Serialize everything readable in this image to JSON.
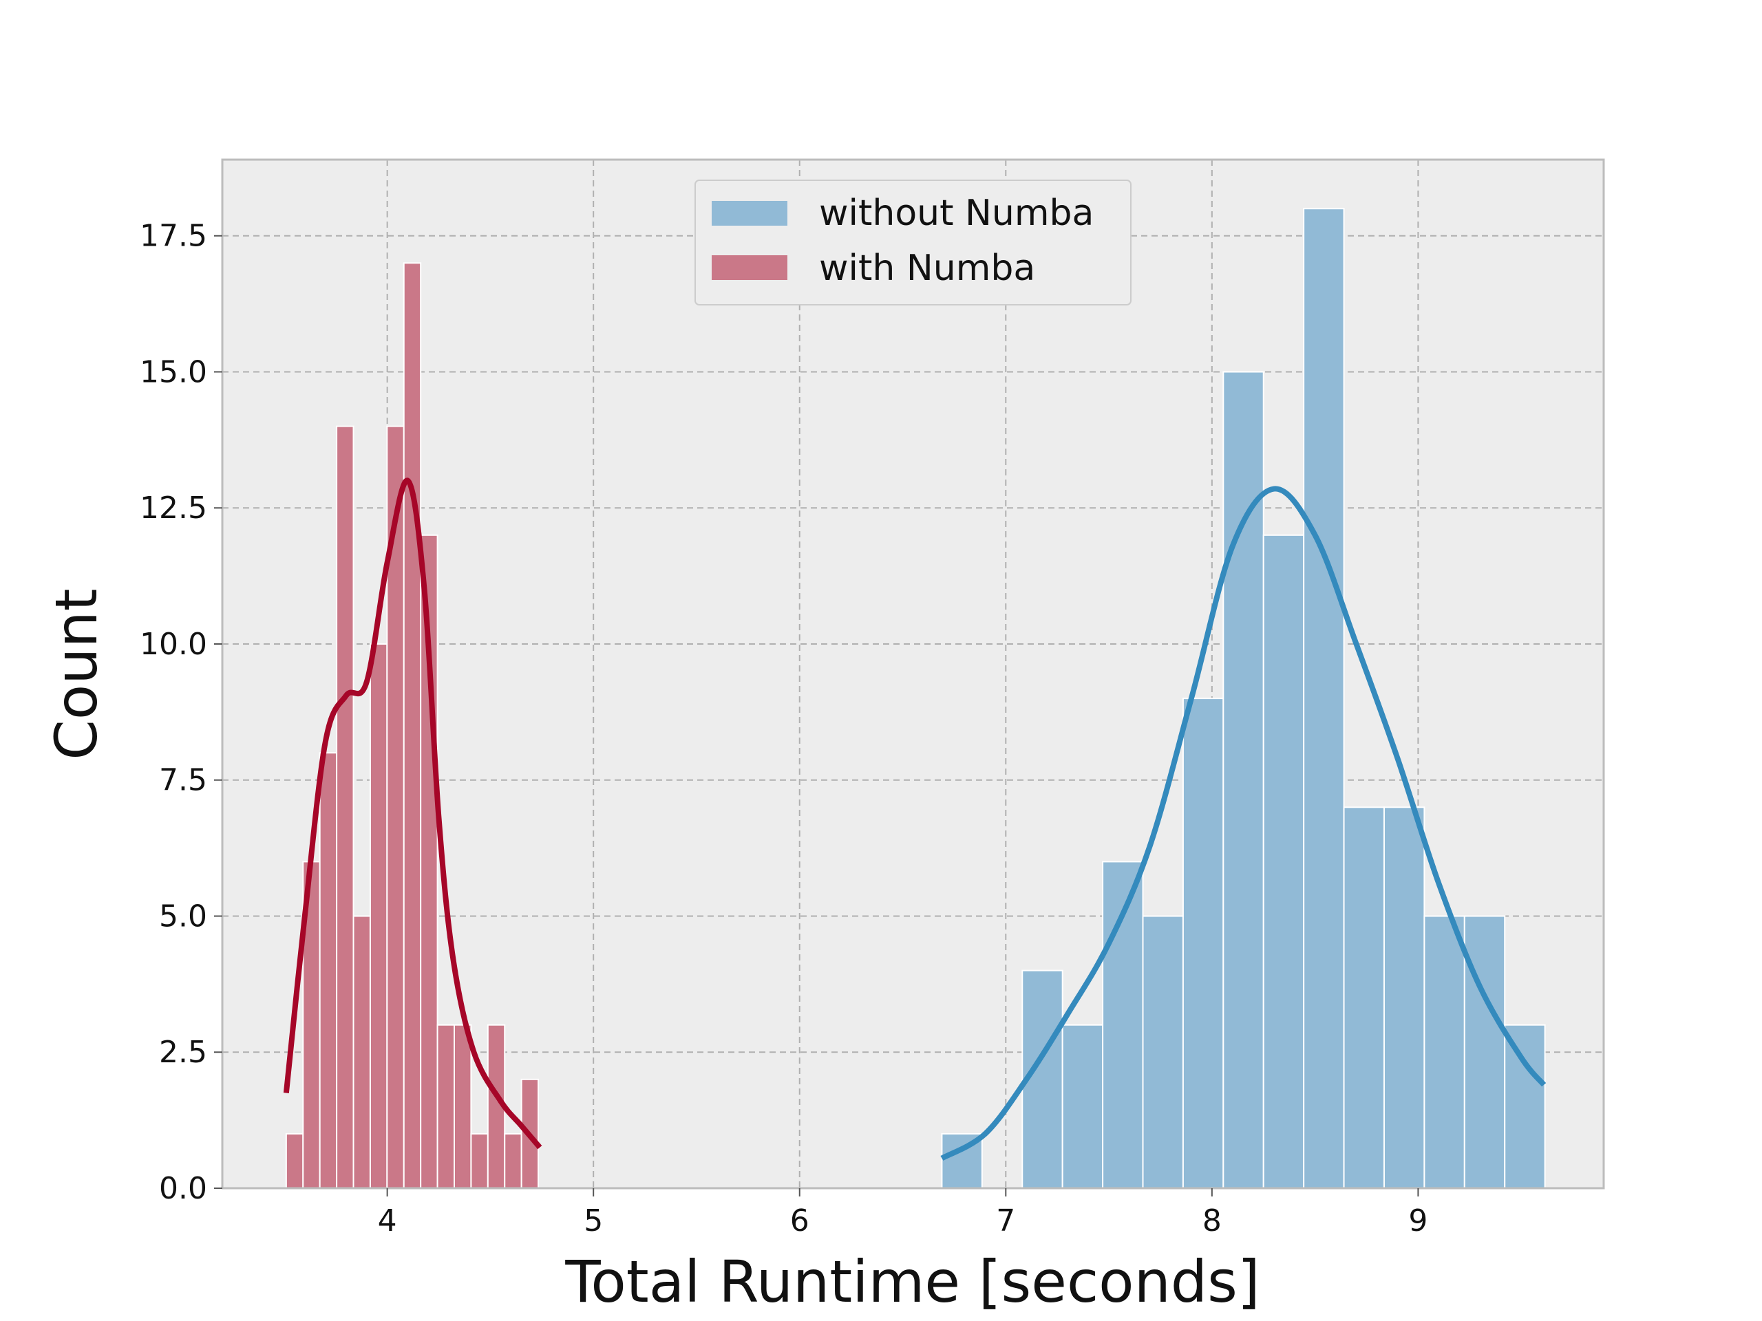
{
  "chart_data": {
    "type": "bar",
    "xlabel": "Total Runtime [seconds]",
    "ylabel": "Count",
    "xlim": [
      3.2,
      9.9
    ],
    "ylim": [
      0,
      18.9
    ],
    "xticks": [
      4,
      5,
      6,
      7,
      8,
      9
    ],
    "xtick_labels": [
      "4",
      "5",
      "6",
      "7",
      "8",
      "9"
    ],
    "yticks": [
      0,
      2.5,
      5,
      7.5,
      10,
      12.5,
      15,
      17.5
    ],
    "ytick_labels": [
      "0.0",
      "2.5",
      "5.0",
      "7.5",
      "10.0",
      "12.5",
      "15.0",
      "17.5"
    ],
    "grid": true,
    "legend_position": "top-center",
    "colors": {
      "background": "#ededed",
      "grid": "#b0b0b0",
      "spine": "#bcbcbc",
      "without_bar": "#91bad6",
      "without_line": "#348abd",
      "with_bar": "#ca7888",
      "with_line": "#a60628"
    },
    "series": [
      {
        "name": "without Numba",
        "bin_width": 0.195,
        "bins": [
          {
            "x0": 6.69,
            "count": 1
          },
          {
            "x0": 6.885,
            "count": 0
          },
          {
            "x0": 7.08,
            "count": 4
          },
          {
            "x0": 7.275,
            "count": 3
          },
          {
            "x0": 7.47,
            "count": 6
          },
          {
            "x0": 7.665,
            "count": 5
          },
          {
            "x0": 7.86,
            "count": 9
          },
          {
            "x0": 8.055,
            "count": 15
          },
          {
            "x0": 8.25,
            "count": 12
          },
          {
            "x0": 8.445,
            "count": 18
          },
          {
            "x0": 8.64,
            "count": 7
          },
          {
            "x0": 8.835,
            "count": 7
          },
          {
            "x0": 9.03,
            "count": 5
          },
          {
            "x0": 9.225,
            "count": 5
          },
          {
            "x0": 9.42,
            "count": 3
          }
        ],
        "kde": [
          [
            6.69,
            0.55
          ],
          [
            6.9,
            1.0
          ],
          [
            7.1,
            2.0
          ],
          [
            7.3,
            3.2
          ],
          [
            7.5,
            4.5
          ],
          [
            7.7,
            6.3
          ],
          [
            7.9,
            9.0
          ],
          [
            8.1,
            11.8
          ],
          [
            8.3,
            12.85
          ],
          [
            8.5,
            12.0
          ],
          [
            8.7,
            10.0
          ],
          [
            8.9,
            7.9
          ],
          [
            9.1,
            5.6
          ],
          [
            9.3,
            3.7
          ],
          [
            9.5,
            2.4
          ],
          [
            9.61,
            1.9
          ]
        ]
      },
      {
        "name": "with Numba",
        "bin_width": 0.0815,
        "bins": [
          {
            "x0": 3.51,
            "count": 1
          },
          {
            "x0": 3.5915,
            "count": 6
          },
          {
            "x0": 3.673,
            "count": 8
          },
          {
            "x0": 3.7545,
            "count": 14
          },
          {
            "x0": 3.836,
            "count": 5
          },
          {
            "x0": 3.9175,
            "count": 10
          },
          {
            "x0": 3.999,
            "count": 14
          },
          {
            "x0": 4.0805,
            "count": 17
          },
          {
            "x0": 4.162,
            "count": 12
          },
          {
            "x0": 4.2435,
            "count": 3
          },
          {
            "x0": 4.325,
            "count": 3
          },
          {
            "x0": 4.4065,
            "count": 1
          },
          {
            "x0": 4.488,
            "count": 3
          },
          {
            "x0": 4.5695,
            "count": 1
          },
          {
            "x0": 4.651,
            "count": 2
          }
        ],
        "kde": [
          [
            3.51,
            1.75
          ],
          [
            3.6,
            5.0
          ],
          [
            3.7,
            8.2
          ],
          [
            3.8,
            9.05
          ],
          [
            3.9,
            9.3
          ],
          [
            4.0,
            11.5
          ],
          [
            4.1,
            13.0
          ],
          [
            4.18,
            11.0
          ],
          [
            4.25,
            6.8
          ],
          [
            4.32,
            4.2
          ],
          [
            4.42,
            2.5
          ],
          [
            4.55,
            1.6
          ],
          [
            4.65,
            1.15
          ],
          [
            4.74,
            0.75
          ]
        ]
      }
    ]
  }
}
